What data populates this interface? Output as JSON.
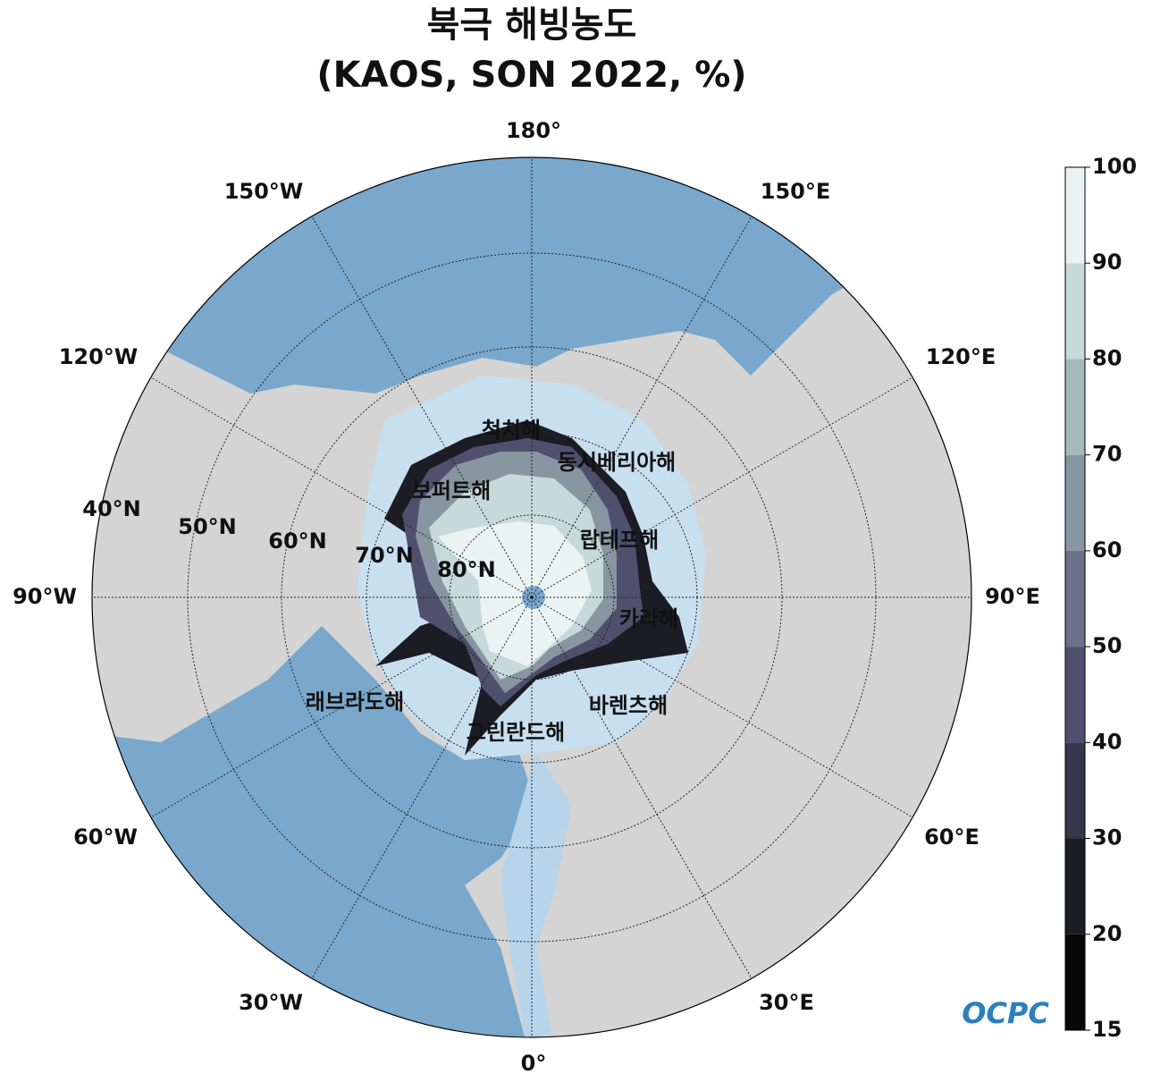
{
  "title": [
    "북극 해빙농도",
    "(KAOS, SON 2022, %)"
  ],
  "map": {
    "projection": "north polar stereographic",
    "lon_labels": [
      "180°",
      "150°E",
      "120°E",
      "90°E",
      "60°E",
      "30°E",
      "0°",
      "30°W",
      "60°W",
      "90°W",
      "120°W",
      "150°W"
    ],
    "lat_labels": [
      "40°N",
      "50°N",
      "60°N",
      "70°N",
      "80°N"
    ],
    "sea_labels": [
      "척치해",
      "동시베리아해",
      "보퍼트해",
      "랍테프해",
      "카라해",
      "바렌츠해",
      "래브라도해",
      "그린란드해"
    ]
  },
  "colorbar": {
    "ticks": [
      15,
      20,
      30,
      40,
      50,
      60,
      70,
      80,
      90,
      100
    ],
    "colors": [
      "#080808",
      "#1c1c25",
      "#36354b",
      "#50506e",
      "#6b7189",
      "#8796a1",
      "#a4baba",
      "#c7dada",
      "#eaf3f2"
    ]
  },
  "logo": "OCPC"
}
